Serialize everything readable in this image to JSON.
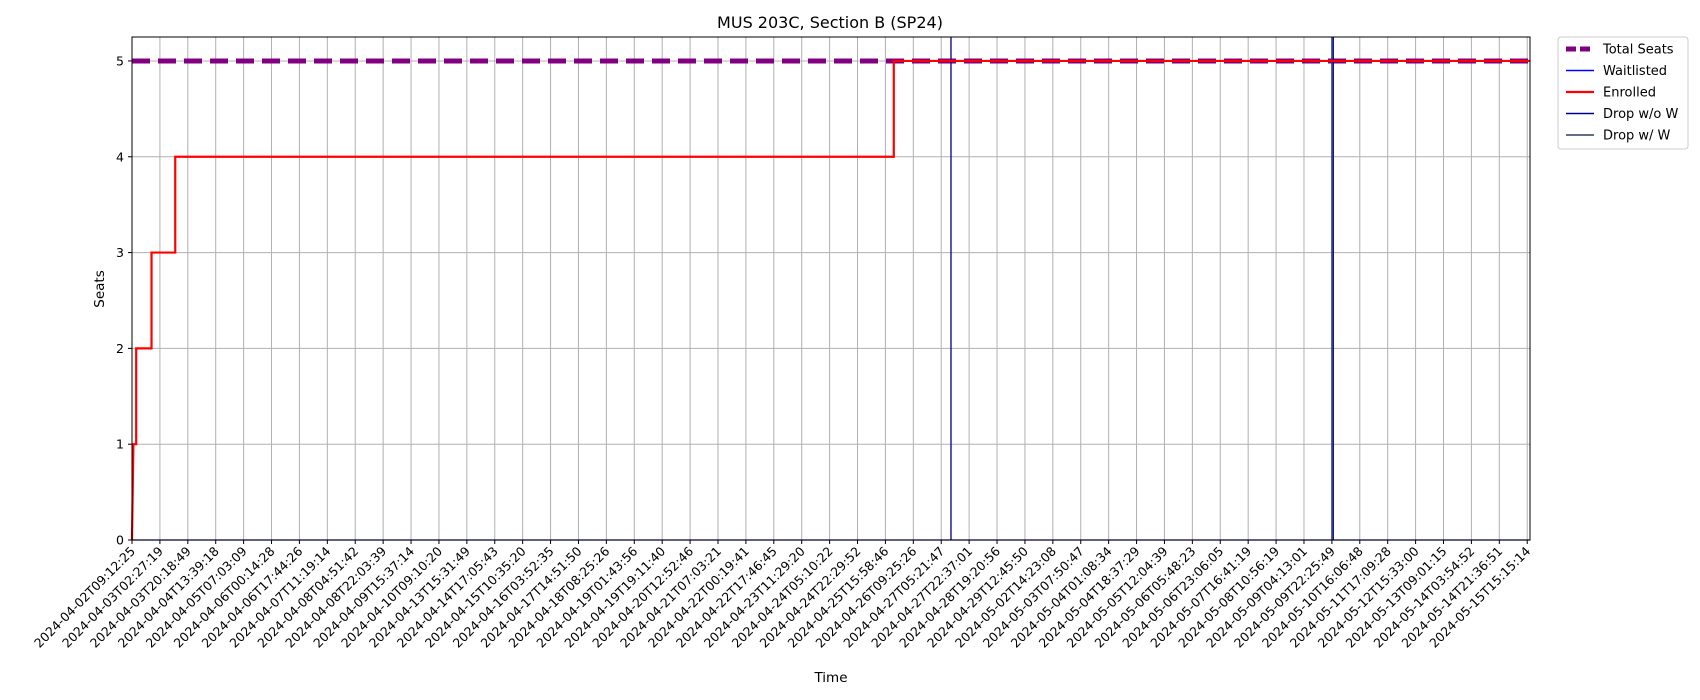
{
  "chart_data": {
    "type": "line",
    "title": "MUS 203C, Section B (SP24)",
    "xlabel": "Time",
    "ylabel": "Seats",
    "ylim": [
      0,
      5.25
    ],
    "yticks": [
      0,
      1,
      2,
      3,
      4,
      5
    ],
    "grid": true,
    "legend_placement": "outside top-right",
    "categories": [
      "2024-04-02T09:12:25",
      "2024-04-03T02:27:19",
      "2024-04-03T20:18:49",
      "2024-04-04T13:39:18",
      "2024-04-05T07:03:09",
      "2024-04-06T00:14:28",
      "2024-04-06T17:44:26",
      "2024-04-07T11:19:14",
      "2024-04-08T04:51:42",
      "2024-04-08T22:03:39",
      "2024-04-09T15:37:14",
      "2024-04-10T09:10:20",
      "2024-04-13T15:31:49",
      "2024-04-14T17:05:43",
      "2024-04-15T10:35:20",
      "2024-04-16T03:52:35",
      "2024-04-17T14:51:50",
      "2024-04-18T08:25:26",
      "2024-04-19T01:43:56",
      "2024-04-19T19:11:40",
      "2024-04-20T12:52:46",
      "2024-04-21T07:03:21",
      "2024-04-22T00:19:41",
      "2024-04-22T17:46:45",
      "2024-04-23T11:29:20",
      "2024-04-24T05:10:22",
      "2024-04-24T22:29:52",
      "2024-04-25T15:58:46",
      "2024-04-26T09:25:26",
      "2024-04-27T05:21:47",
      "2024-04-27T22:37:01",
      "2024-04-28T19:20:56",
      "2024-04-29T12:45:50",
      "2024-05-02T14:23:08",
      "2024-05-03T07:50:47",
      "2024-05-04T01:08:34",
      "2024-05-04T18:37:29",
      "2024-05-05T12:04:39",
      "2024-05-06T05:48:23",
      "2024-05-06T23:06:05",
      "2024-05-07T16:41:19",
      "2024-05-08T10:56:19",
      "2024-05-09T04:13:01",
      "2024-05-09T22:25:49",
      "2024-05-10T16:06:48",
      "2024-05-11T17:09:28",
      "2024-05-12T15:33:00",
      "2024-05-13T09:01:15",
      "2024-05-14T03:54:52",
      "2024-05-14T21:36:51",
      "2024-05-15T15:15:14"
    ],
    "x_index_range": [
      0,
      50.1
    ],
    "series": [
      {
        "name": "Total Seats",
        "color": "#800080",
        "style": "dashed",
        "points": [
          [
            0,
            5
          ],
          [
            50.1,
            5
          ]
        ]
      },
      {
        "name": "Waitlisted",
        "color": "#0000ff",
        "style": "solid",
        "points": [
          [
            0,
            0
          ],
          [
            50.1,
            0
          ]
        ]
      },
      {
        "name": "Enrolled",
        "color": "#ff0000",
        "style": "step",
        "points": [
          [
            0,
            0
          ],
          [
            0.05,
            1
          ],
          [
            0.15,
            1
          ],
          [
            0.15,
            2
          ],
          [
            0.7,
            2
          ],
          [
            0.7,
            3
          ],
          [
            1.55,
            3
          ],
          [
            1.55,
            4
          ],
          [
            27.3,
            4
          ],
          [
            27.3,
            5
          ],
          [
            50.1,
            5
          ]
        ]
      },
      {
        "name": "Drop w/o W",
        "color": "#00008b",
        "style": "vertical",
        "x": [
          29.35,
          43.05
        ]
      },
      {
        "name": "Drop w/ W",
        "color": "#2f3f5f",
        "style": "vertical",
        "x": [
          43.0
        ]
      }
    ]
  }
}
